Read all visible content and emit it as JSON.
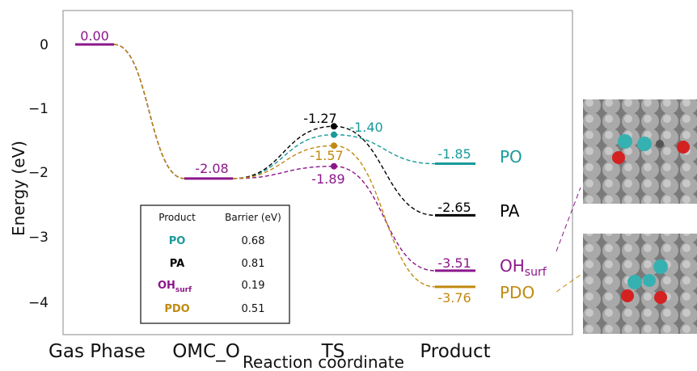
{
  "chart_data": {
    "type": "line",
    "title": "",
    "xlabel": "Reaction coordinate",
    "ylabel": "Energy (eV)",
    "categories": [
      "Gas Phase",
      "OMC_O",
      "TS",
      "Product"
    ],
    "ylim": [
      -4.5,
      0.55
    ],
    "yticks": [
      0,
      -1,
      -2,
      -3,
      -4
    ],
    "ytick_labels": [
      "0",
      "−1",
      "−2",
      "−3",
      "−4"
    ],
    "grid": false,
    "series": [
      {
        "name": "PO",
        "color": "#1a9a9a",
        "values": [
          0.0,
          -2.08,
          -1.4,
          -1.85
        ],
        "labels": [
          "0.00",
          "-2.08",
          "-1.40",
          "-1.85"
        ]
      },
      {
        "name": "PA",
        "color": "#000000",
        "values": [
          0.0,
          -2.08,
          -1.27,
          -2.65
        ],
        "labels": [
          "0.00",
          "-2.08",
          "-1.27",
          "-2.65"
        ]
      },
      {
        "name": "OH",
        "name_sub": "surf",
        "color": "#8b168b",
        "values": [
          0.0,
          -2.08,
          -1.89,
          -3.51
        ],
        "labels": [
          "0.00",
          "-2.08",
          "-1.89",
          "-3.51"
        ]
      },
      {
        "name": "PDO",
        "color": "#c08a12",
        "values": [
          0.0,
          -2.08,
          -1.57,
          -3.76
        ],
        "labels": [
          "0.00",
          "-2.08",
          "-1.57",
          "-3.76"
        ]
      }
    ],
    "shared_labels": {
      "gas": "0.00",
      "omc": "-2.08"
    },
    "table": {
      "headers": [
        "Product",
        "Barrier (eV)"
      ],
      "rows": [
        {
          "product": "PO",
          "sub": "",
          "barrier": "0.68",
          "color": "#1a9a9a"
        },
        {
          "product": "PA",
          "sub": "",
          "barrier": "0.81",
          "color": "#000000"
        },
        {
          "product": "OH",
          "sub": "surf",
          "barrier": "0.19",
          "color": "#8b168b"
        },
        {
          "product": "PDO",
          "sub": "",
          "barrier": "0.51",
          "color": "#c08a12"
        }
      ]
    }
  }
}
